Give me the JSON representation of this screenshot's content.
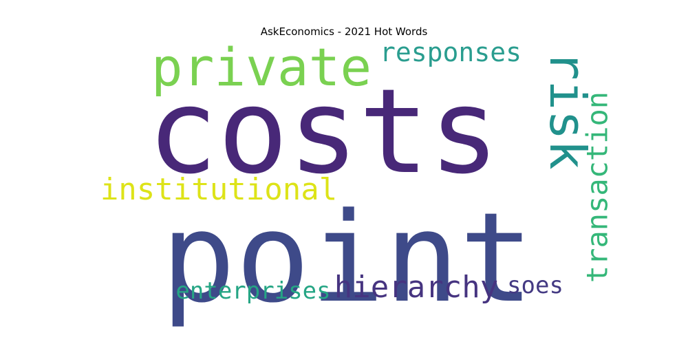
{
  "chart_data": {
    "type": "wordcloud",
    "title": "AskEconomics - 2021 Hot Words",
    "words": [
      {
        "text": "costs",
        "weight": 1.0,
        "color": "#482878",
        "orientation": "horizontal"
      },
      {
        "text": "point",
        "weight": 0.9,
        "color": "#3e4a89",
        "orientation": "horizontal"
      },
      {
        "text": "private",
        "weight": 0.45,
        "color": "#7ad151",
        "orientation": "horizontal"
      },
      {
        "text": "risk",
        "weight": 0.42,
        "color": "#21918c",
        "orientation": "vertical"
      },
      {
        "text": "transaction",
        "weight": 0.33,
        "color": "#35b779",
        "orientation": "vertical"
      },
      {
        "text": "responses",
        "weight": 0.27,
        "color": "#2a9d8f",
        "orientation": "horizontal"
      },
      {
        "text": "institutional",
        "weight": 0.3,
        "color": "#dde318",
        "orientation": "horizontal"
      },
      {
        "text": "hierarchy",
        "weight": 0.3,
        "color": "#463480",
        "orientation": "horizontal"
      },
      {
        "text": "enterprises",
        "weight": 0.22,
        "color": "#25a584",
        "orientation": "horizontal"
      },
      {
        "text": "soes",
        "weight": 0.22,
        "color": "#443a83",
        "orientation": "horizontal"
      }
    ]
  }
}
